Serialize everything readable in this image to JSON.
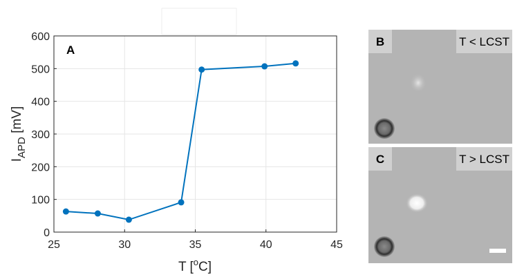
{
  "chart_data": {
    "type": "line",
    "panel_label": "A",
    "xlabel_parts": [
      "T [",
      "o",
      "C]"
    ],
    "ylabel_parts": [
      "I",
      "APD",
      " [mV]"
    ],
    "x": [
      25.85,
      28.1,
      30.3,
      34.0,
      35.45,
      39.9,
      42.1
    ],
    "series": [
      {
        "color": "#0072bd",
        "values": [
          63,
          57,
          38,
          91,
          497,
          507,
          516
        ]
      }
    ],
    "xlim": [
      25,
      45
    ],
    "xticks": [
      25,
      30,
      35,
      40,
      45
    ],
    "ylim": [
      0,
      600
    ],
    "yticks": [
      0,
      100,
      200,
      300,
      400,
      500,
      600
    ],
    "grid": true
  },
  "images": [
    {
      "label": "B",
      "condition": "T < LCST"
    },
    {
      "label": "C",
      "condition": "T > LCST"
    }
  ]
}
